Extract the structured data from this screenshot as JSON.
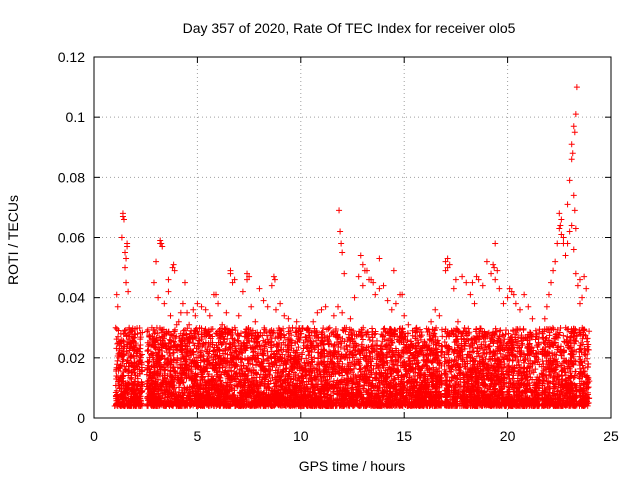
{
  "chart_data": {
    "type": "scatter",
    "title": "Day 357 of 2020, Rate Of TEC Index for receiver olo5",
    "xlabel": "GPS time / hours",
    "ylabel": "ROTI / TECUs",
    "xlim": [
      0,
      25
    ],
    "ylim": [
      0,
      0.12
    ],
    "xticks": [
      0,
      5,
      10,
      15,
      20,
      25
    ],
    "xtick_labels": [
      "0",
      "5",
      "10",
      "15",
      "20",
      "25"
    ],
    "yticks": [
      0,
      0.02,
      0.04,
      0.06,
      0.08,
      0.1,
      0.12
    ],
    "ytick_labels": [
      "0",
      "0.02",
      "0.04",
      "0.06",
      "0.08",
      "0.1",
      "0.12"
    ],
    "grid": true,
    "marker": "plus",
    "color": "#ff0000",
    "series": [
      {
        "x": [
          1.0,
          1.05,
          1.1,
          1.15,
          1.2,
          1.25,
          1.3,
          1.35,
          1.4,
          1.45,
          1.5,
          1.55,
          1.6,
          1.65,
          1.7,
          1.75,
          1.8,
          1.85,
          1.9,
          1.95,
          2.0,
          2.05,
          2.1,
          2.15,
          2.2,
          2.25,
          2.3,
          1.4,
          1.5,
          1.6,
          1.55,
          2.6,
          2.7,
          2.8,
          2.9,
          3.0,
          3.1,
          3.2,
          3.3,
          3.4,
          3.5,
          3.6,
          3.7,
          3.8,
          3.9,
          4.0,
          4.1,
          4.2,
          4.3,
          4.4,
          4.5,
          4.6,
          4.7,
          4.8,
          4.9,
          5.0,
          3.2,
          3.25,
          3.85,
          3.6,
          4.4,
          5.2,
          5.4,
          5.6,
          5.8,
          6.0,
          6.2,
          6.4,
          6.6,
          6.8,
          7.0,
          7.2,
          7.4,
          7.6,
          7.8,
          8.0,
          8.2,
          8.4,
          8.6,
          8.8,
          9.0,
          9.2,
          9.4,
          9.6,
          9.8,
          6.6,
          6.7,
          7.4,
          7.5,
          8.7,
          8.75,
          5.9,
          10.0,
          10.2,
          10.4,
          10.6,
          10.8,
          11.0,
          11.2,
          11.4,
          11.6,
          11.8,
          12.0,
          12.2,
          12.4,
          12.6,
          12.8,
          13.0,
          13.2,
          13.4,
          13.6,
          13.8,
          14.0,
          14.2,
          14.4,
          14.6,
          14.8,
          15.0,
          15.2,
          15.4,
          15.6,
          15.8,
          16.0,
          16.2,
          16.4,
          16.6,
          16.8,
          11.85,
          11.9,
          11.95,
          12.0,
          12.1,
          13.0,
          13.1,
          13.3,
          13.8,
          14.5,
          14.9,
          12.9,
          13.5,
          16.3,
          16.5,
          16.7,
          17.0,
          17.1,
          17.2,
          17.4,
          17.6,
          17.8,
          18.0,
          18.2,
          18.4,
          18.6,
          18.8,
          19.0,
          19.2,
          19.4,
          19.6,
          19.8,
          20.0,
          20.2,
          20.4,
          20.6,
          20.8,
          21.0,
          21.2,
          21.4,
          17.0,
          17.1,
          17.5,
          18.3,
          18.5,
          19.3,
          19.35,
          19.4,
          19.5,
          20.1,
          20.3,
          21.7,
          21.8,
          21.9,
          22.0,
          22.1,
          22.2,
          22.3,
          22.4,
          22.5,
          22.6,
          22.7,
          22.8,
          22.9,
          23.0,
          23.1,
          23.2,
          23.3,
          23.4,
          23.5,
          23.6,
          23.7,
          23.8,
          23.9,
          22.5,
          22.55,
          22.6,
          22.7,
          23.1,
          23.15,
          23.2,
          23.25,
          23.3,
          23.35,
          23.2,
          23.25,
          23.1,
          23.0,
          22.9,
          23.3,
          23.5
        ],
        "y": [
          0.004,
          0.03,
          0.041,
          0.037,
          0.02,
          0.01,
          0.028,
          0.06,
          0.068,
          0.066,
          0.05,
          0.045,
          0.057,
          0.042,
          0.03,
          0.02,
          0.015,
          0.027,
          0.025,
          0.012,
          0.008,
          0.022,
          0.028,
          0.018,
          0.007,
          0.004,
          0.012,
          0.067,
          0.055,
          0.058,
          0.053,
          0.025,
          0.015,
          0.03,
          0.045,
          0.052,
          0.04,
          0.058,
          0.057,
          0.038,
          0.028,
          0.046,
          0.034,
          0.05,
          0.049,
          0.031,
          0.032,
          0.035,
          0.038,
          0.028,
          0.035,
          0.031,
          0.029,
          0.036,
          0.034,
          0.038,
          0.059,
          0.058,
          0.051,
          0.042,
          0.045,
          0.037,
          0.036,
          0.034,
          0.041,
          0.038,
          0.031,
          0.035,
          0.048,
          0.046,
          0.034,
          0.042,
          0.046,
          0.037,
          0.032,
          0.043,
          0.039,
          0.037,
          0.044,
          0.036,
          0.038,
          0.034,
          0.033,
          0.03,
          0.032,
          0.049,
          0.045,
          0.048,
          0.047,
          0.047,
          0.046,
          0.041,
          0.028,
          0.024,
          0.029,
          0.032,
          0.035,
          0.036,
          0.037,
          0.03,
          0.034,
          0.037,
          0.035,
          0.03,
          0.033,
          0.04,
          0.047,
          0.044,
          0.049,
          0.046,
          0.041,
          0.043,
          0.044,
          0.039,
          0.036,
          0.038,
          0.041,
          0.034,
          0.031,
          0.029,
          0.03,
          0.027,
          0.025,
          0.024,
          0.026,
          0.022,
          0.024,
          0.069,
          0.062,
          0.058,
          0.055,
          0.048,
          0.051,
          0.049,
          0.046,
          0.053,
          0.049,
          0.041,
          0.054,
          0.045,
          0.032,
          0.036,
          0.034,
          0.049,
          0.053,
          0.051,
          0.043,
          0.032,
          0.047,
          0.045,
          0.041,
          0.038,
          0.046,
          0.044,
          0.052,
          0.048,
          0.046,
          0.043,
          0.038,
          0.04,
          0.042,
          0.038,
          0.036,
          0.041,
          0.037,
          0.033,
          0.027,
          0.052,
          0.05,
          0.046,
          0.045,
          0.047,
          0.051,
          0.05,
          0.058,
          0.049,
          0.043,
          0.041,
          0.028,
          0.033,
          0.037,
          0.041,
          0.045,
          0.049,
          0.052,
          0.058,
          0.063,
          0.066,
          0.06,
          0.054,
          0.058,
          0.062,
          0.064,
          0.056,
          0.048,
          0.044,
          0.038,
          0.04,
          0.047,
          0.043,
          0.018,
          0.068,
          0.064,
          0.061,
          0.058,
          0.091,
          0.088,
          0.097,
          0.095,
          0.101,
          0.11,
          0.074,
          0.069,
          0.086,
          0.079,
          0.071,
          0.063,
          0.046
        ]
      }
    ],
    "background_points_note_excluded": null
  }
}
